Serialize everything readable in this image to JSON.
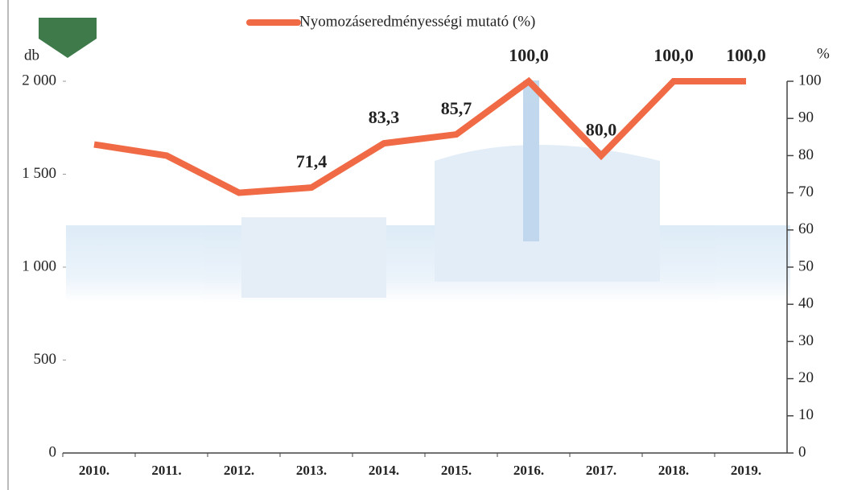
{
  "chart_data": {
    "type": "line",
    "y_label": "db",
    "y2_label": "%",
    "categories": [
      "2010.",
      "2011.",
      "2012.",
      "2013.",
      "2014.",
      "2015.",
      "2016.",
      "2017.",
      "2018.",
      "2019."
    ],
    "ylim": [
      0,
      2000
    ],
    "yticks": [
      0,
      500,
      {
        "value": 1000,
        "label": "1 000"
      },
      {
        "value": 1500,
        "label": "1 500"
      },
      {
        "value": 2000,
        "label": "2 000"
      }
    ],
    "y2lim": [
      0,
      100
    ],
    "y2ticks": [
      0,
      10,
      20,
      30,
      40,
      50,
      60,
      70,
      80,
      90,
      100
    ],
    "legend": "top",
    "series": [
      {
        "name": "Nyomozáseredményességi mutató (%)",
        "color": "#f06a45",
        "axis": "y2",
        "values": [
          83,
          80,
          70,
          71.4,
          83.3,
          85.7,
          100,
          80,
          100,
          100
        ],
        "value_labels": [
          null,
          null,
          null,
          "71,4",
          "83,3",
          "85,7",
          "100,0",
          "80,0",
          "100,0",
          "100,0"
        ]
      }
    ]
  }
}
